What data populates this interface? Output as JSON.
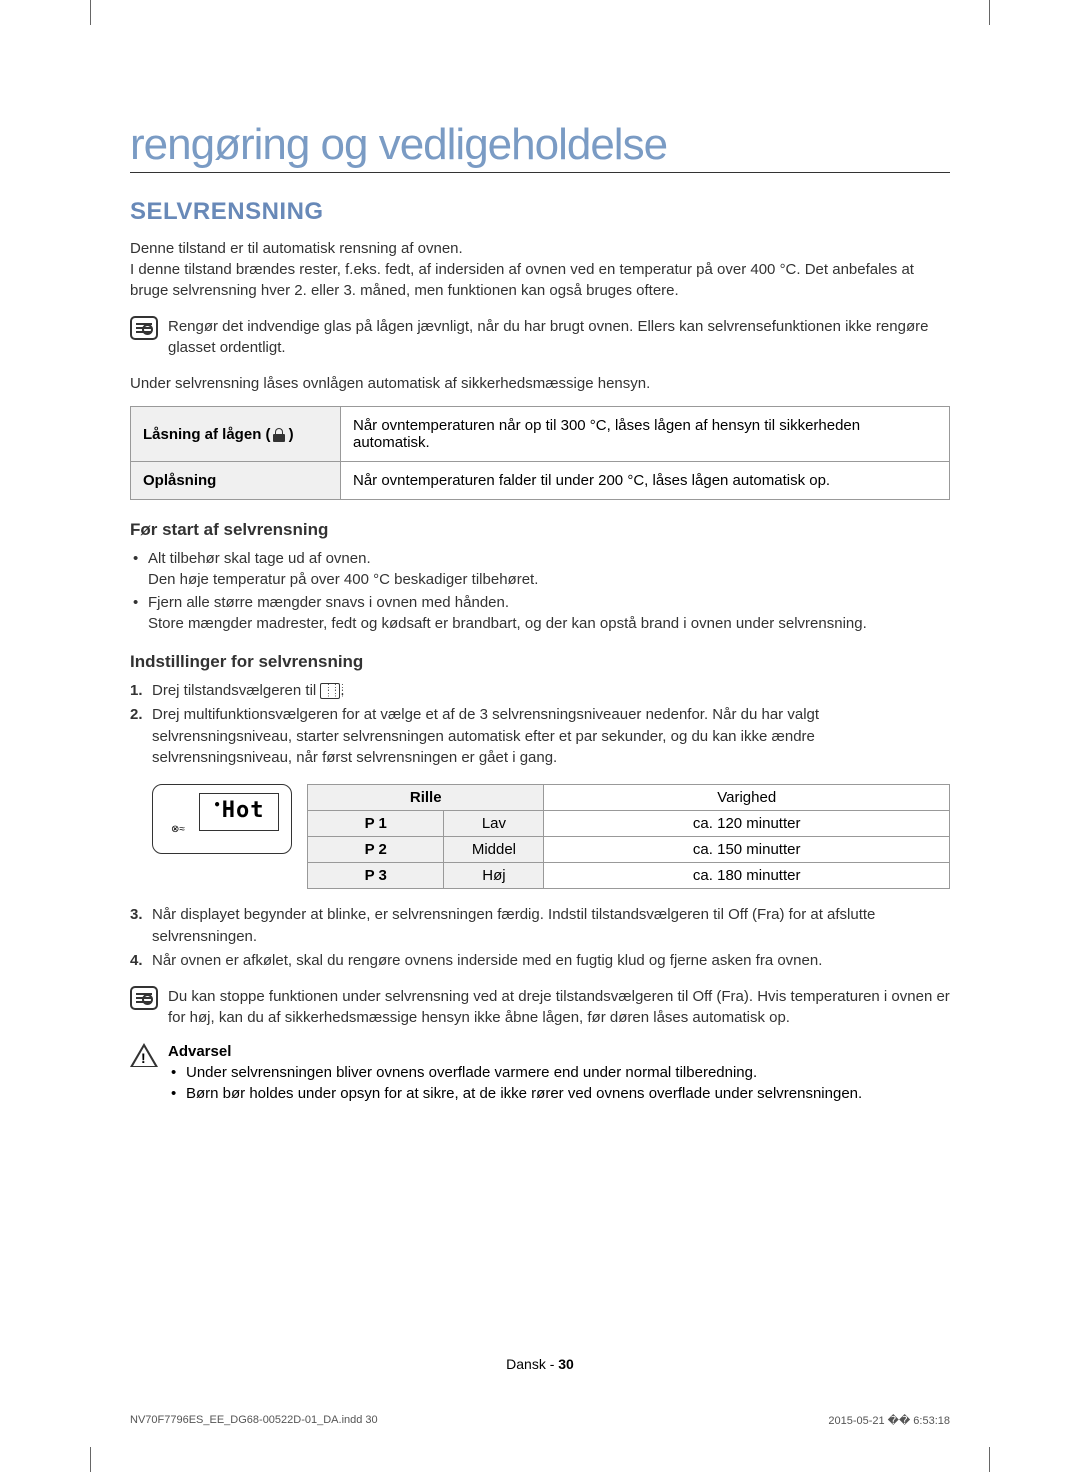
{
  "page": {
    "main_title": "rengøring og vedligeholdelse",
    "section_title": "SELVRENSNING",
    "intro_p1": "Denne tilstand er til automatisk rensning af ovnen.",
    "intro_p2": "I denne tilstand brændes rester, f.eks. fedt, af indersiden af ovnen ved en temperatur på over 400 °C. Det anbefales at bruge selvrensning hver 2. eller 3. måned, men funktionen kan også bruges oftere.",
    "note1": "Rengør det indvendige glas på lågen jævnligt, når du har brugt ovnen. Ellers kan selvrensefunktionen ikke rengøre glasset ordentligt.",
    "under_text": "Under selvrensning låses ovnlågen automatisk af sikkerhedsmæssige hensyn.",
    "lock_table": {
      "row1_label": "Låsning af lågen (",
      "row1_label_end": " )",
      "row1_text": "Når ovntemperaturen når op til 300 °C, låses lågen af hensyn til sikkerheden automatisk.",
      "row2_label": "Oplåsning",
      "row2_text": "Når ovntemperaturen falder til under 200 °C, låses lågen automatisk op."
    },
    "before_title": "Før start af selvrensning",
    "before_bullets": {
      "b1_l1": "Alt tilbehør skal tage ud af ovnen.",
      "b1_l2": "Den høje temperatur på over 400 °C beskadiger tilbehøret.",
      "b2_l1": "Fjern alle større mængder snavs i ovnen med hånden.",
      "b2_l2": "Store mængder madrester, fedt og kødsaft er brandbart, og der kan opstå brand i ovnen under selvrensning."
    },
    "settings_title": "Indstillinger for selvrensning",
    "settings_steps": {
      "s1": "Drej tilstandsvælgeren til ",
      "s1_end": ".",
      "s2": "Drej multifunktionsvælgeren for at vælge et af de 3 selvrensningsniveauer nedenfor. Når du har valgt selvrensningsniveau, starter selvrensningen automatisk efter et par sekunder, og du kan ikke ændre selvrensningsniveau, når først selvrensningen er gået i gang.",
      "s3": "Når displayet begynder at blinke, er selvrensningen færdig. Indstil tilstandsvælgeren til Off (Fra) for at afslutte selvrensningen.",
      "s4": "Når ovnen er afkølet, skal du rengøre ovnens inderside med en fugtig klud og fjerne asken fra ovnen."
    },
    "display_text": "Hot",
    "display_symbol": "⊗≈",
    "settings_table": {
      "header_rille": "Rille",
      "header_varighed": "Varighed",
      "rows": [
        {
          "p": "P 1",
          "level": "Lav",
          "duration": "ca. 120 minutter"
        },
        {
          "p": "P 2",
          "level": "Middel",
          "duration": "ca. 150 minutter"
        },
        {
          "p": "P 3",
          "level": "Høj",
          "duration": "ca. 180 minutter"
        }
      ]
    },
    "note2": "Du kan stoppe funktionen under selvrensning ved at dreje tilstandsvælgeren til Off (Fra). Hvis temperaturen i ovnen er for høj, kan du af sikkerhedsmæssige hensyn ikke åbne lågen, før døren låses automatisk op.",
    "warning_title": "Advarsel",
    "warning_bullets": {
      "w1": "Under selvrensningen bliver ovnens overflade varmere end under normal tilberedning.",
      "w2": "Børn bør holdes under opsyn for at sikre, at de ikke rører ved ovnens overflade under selvrensningen."
    },
    "footer_lang": "Dansk - ",
    "footer_page": "30",
    "print_file": "NV70F7796ES_EE_DG68-00522D-01_DA.indd   30",
    "print_date": "2015-05-21   �� 6:53:18"
  }
}
